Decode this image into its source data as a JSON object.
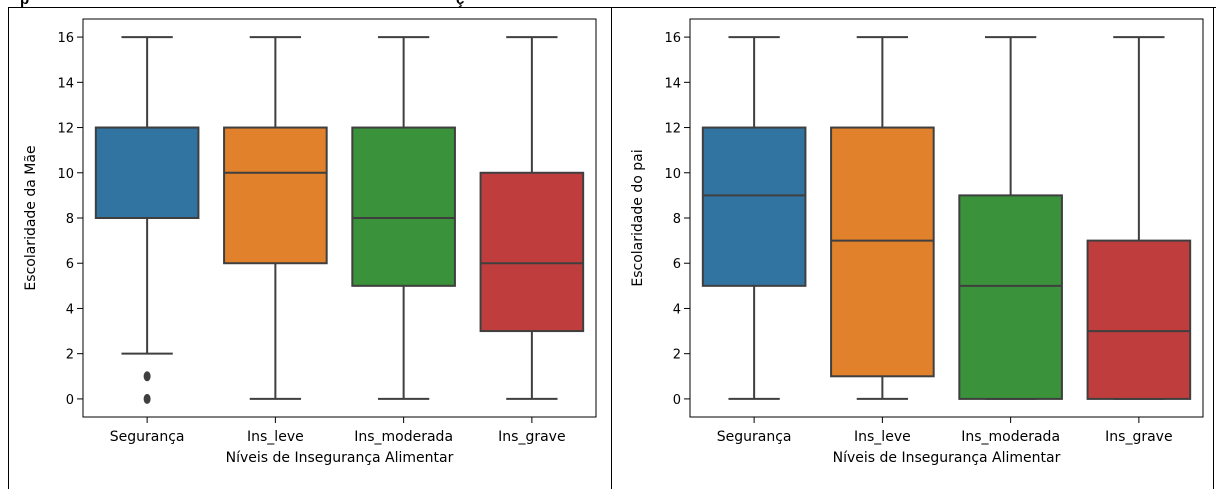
{
  "caption": "p",
  "caption_suffix": "ç",
  "colors": {
    "seguranca": "#3274a1",
    "ins_leve": "#e1812c",
    "ins_moderada": "#3a923a",
    "ins_grave": "#c03d3e",
    "line": "#3f3f3f"
  },
  "chart_data": [
    {
      "type": "box",
      "xlabel": "Níveis de Insegurança Alimentar",
      "ylabel": "Escolaridade da Mãe",
      "categories": [
        "Segurança",
        "Ins_leve",
        "Ins_moderada",
        "Ins_grave"
      ],
      "ylim": [
        -0.8,
        16.8
      ],
      "yticks": [
        0,
        2,
        4,
        6,
        8,
        10,
        12,
        14,
        16
      ],
      "grid": false,
      "boxes": [
        {
          "category": "Segurança",
          "whisker_low": 2,
          "q1": 8,
          "median": 12,
          "q3": 12,
          "whisker_high": 16,
          "outliers": [
            0,
            1
          ]
        },
        {
          "category": "Ins_leve",
          "whisker_low": 0,
          "q1": 6,
          "median": 10,
          "q3": 12,
          "whisker_high": 16,
          "outliers": []
        },
        {
          "category": "Ins_moderada",
          "whisker_low": 0,
          "q1": 5,
          "median": 8,
          "q3": 12,
          "whisker_high": 16,
          "outliers": []
        },
        {
          "category": "Ins_grave",
          "whisker_low": 0,
          "q1": 3,
          "median": 6,
          "q3": 10,
          "whisker_high": 16,
          "outliers": []
        }
      ]
    },
    {
      "type": "box",
      "xlabel": "Níveis de Insegurança Alimentar",
      "ylabel": "Escolaridade do pai",
      "categories": [
        "Segurança",
        "Ins_leve",
        "Ins_moderada",
        "Ins_grave"
      ],
      "ylim": [
        -0.8,
        16.8
      ],
      "yticks": [
        0,
        2,
        4,
        6,
        8,
        10,
        12,
        14,
        16
      ],
      "grid": false,
      "boxes": [
        {
          "category": "Segurança",
          "whisker_low": 0,
          "q1": 5,
          "median": 9,
          "q3": 12,
          "whisker_high": 16,
          "outliers": []
        },
        {
          "category": "Ins_leve",
          "whisker_low": 0,
          "q1": 1,
          "median": 7,
          "q3": 12,
          "whisker_high": 16,
          "outliers": []
        },
        {
          "category": "Ins_moderada",
          "whisker_low": 0,
          "q1": 0,
          "median": 5,
          "q3": 9,
          "whisker_high": 16,
          "outliers": []
        },
        {
          "category": "Ins_grave",
          "whisker_low": 0,
          "q1": 0,
          "median": 3,
          "q3": 7,
          "whisker_high": 16,
          "outliers": []
        }
      ]
    }
  ]
}
